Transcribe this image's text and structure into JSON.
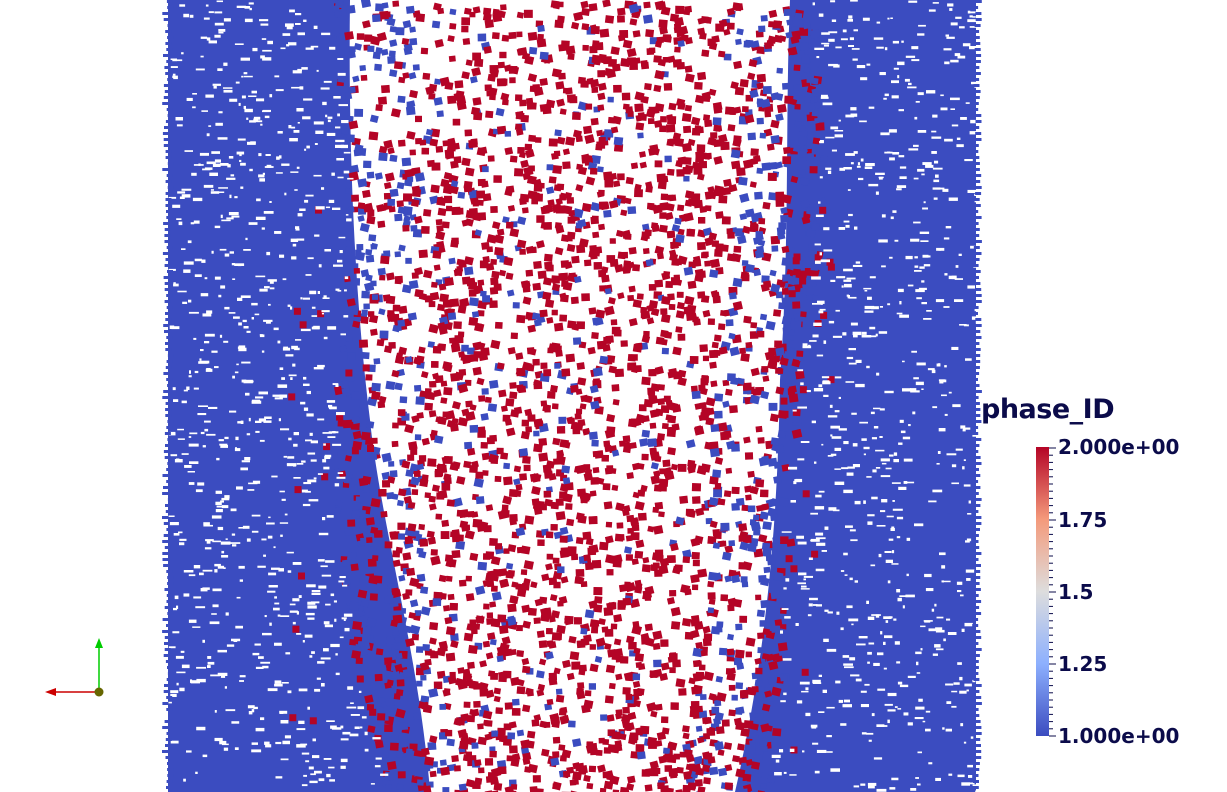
{
  "legend": {
    "title": "phase_ID",
    "max_label": "2.000e+00",
    "label_175": "1.75",
    "label_15": "1.5",
    "label_125": "1.25",
    "min_label": "1.000e+00",
    "range": [
      1.0,
      2.0
    ],
    "colormap": [
      "#3b4cc0",
      "#8db0fe",
      "#dddddd",
      "#f49a7b",
      "#b40426"
    ]
  },
  "scene": {
    "phase_1_color": "#3b4cc0",
    "phase_2_color": "#b40426",
    "background_color": "#ffffff"
  },
  "axes": {
    "x_color": "#cc0000",
    "y_color": "#00cc00",
    "origin_color": "#666600"
  }
}
